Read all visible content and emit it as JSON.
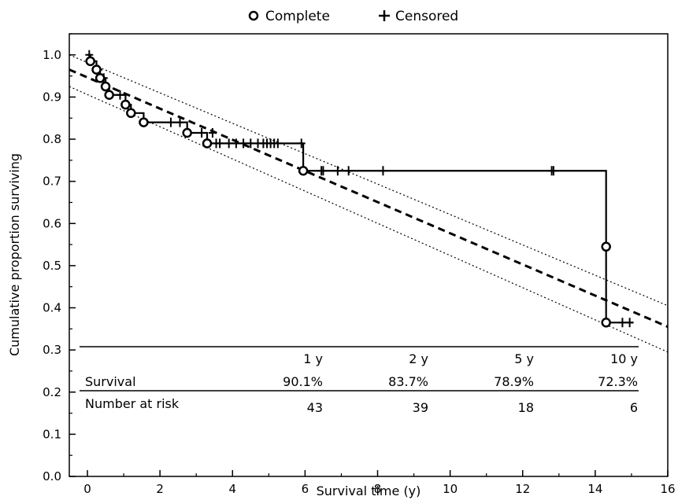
{
  "legend": {
    "complete_label": "Complete",
    "censored_label": "Censored",
    "placement": "top"
  },
  "chart_data": {
    "type": "line",
    "title": "",
    "xlabel": "Survival time (y)",
    "ylabel": "Cumulative proportion surviving",
    "xlim": [
      -0.5,
      16
    ],
    "ylim": [
      0,
      1.05
    ],
    "xticks": [
      0,
      2,
      4,
      6,
      8,
      10,
      12,
      14,
      16
    ],
    "yticks": [
      0.0,
      0.1,
      0.2,
      0.3,
      0.4,
      0.5,
      0.6,
      0.7,
      0.8,
      0.9,
      1.0
    ],
    "ytick_labels": [
      "0.0",
      "0.1",
      "0.2",
      "0.3",
      "0.4",
      "0.5",
      "0.6",
      "0.7",
      "0.8",
      "0.9",
      "1.0"
    ],
    "grid": false,
    "series": [
      {
        "name": "Complete",
        "kind": "step",
        "points": [
          [
            0.0,
            1.0
          ],
          [
            0.08,
            0.985
          ],
          [
            0.25,
            0.965
          ],
          [
            0.35,
            0.945
          ],
          [
            0.5,
            0.925
          ],
          [
            0.6,
            0.905
          ],
          [
            1.05,
            0.882
          ],
          [
            1.2,
            0.862
          ],
          [
            1.55,
            0.84
          ],
          [
            2.75,
            0.815
          ],
          [
            3.3,
            0.79
          ],
          [
            5.95,
            0.725
          ],
          [
            14.3,
            0.545
          ],
          [
            14.3,
            0.365
          ],
          [
            15.05,
            0.365
          ]
        ],
        "event_markers": [
          [
            0.08,
            0.985
          ],
          [
            0.25,
            0.965
          ],
          [
            0.35,
            0.945
          ],
          [
            0.5,
            0.925
          ],
          [
            0.6,
            0.905
          ],
          [
            1.05,
            0.882
          ],
          [
            1.2,
            0.862
          ],
          [
            1.55,
            0.84
          ],
          [
            2.75,
            0.815
          ],
          [
            3.3,
            0.79
          ],
          [
            5.95,
            0.725
          ],
          [
            14.3,
            0.545
          ],
          [
            14.3,
            0.365
          ]
        ]
      },
      {
        "name": "Censored",
        "kind": "markers",
        "points": [
          [
            0.05,
            1.0
          ],
          [
            0.3,
            0.965
          ],
          [
            0.45,
            0.945
          ],
          [
            0.9,
            0.905
          ],
          [
            1.1,
            0.882
          ],
          [
            2.3,
            0.84
          ],
          [
            2.55,
            0.84
          ],
          [
            3.15,
            0.815
          ],
          [
            3.45,
            0.815
          ],
          [
            3.55,
            0.79
          ],
          [
            3.65,
            0.79
          ],
          [
            3.9,
            0.79
          ],
          [
            4.1,
            0.79
          ],
          [
            4.3,
            0.79
          ],
          [
            4.5,
            0.79
          ],
          [
            4.7,
            0.79
          ],
          [
            4.85,
            0.79
          ],
          [
            4.95,
            0.79
          ],
          [
            5.05,
            0.79
          ],
          [
            5.15,
            0.79
          ],
          [
            5.25,
            0.79
          ],
          [
            5.9,
            0.79
          ],
          [
            6.45,
            0.725
          ],
          [
            6.5,
            0.725
          ],
          [
            6.9,
            0.725
          ],
          [
            7.2,
            0.725
          ],
          [
            8.15,
            0.725
          ],
          [
            12.8,
            0.725
          ],
          [
            12.85,
            0.725
          ],
          [
            14.75,
            0.365
          ],
          [
            14.95,
            0.365
          ]
        ]
      },
      {
        "kind": "regression",
        "style": "dashed",
        "points": [
          [
            -0.5,
            0.965
          ],
          [
            16,
            0.355
          ]
        ]
      },
      {
        "kind": "confidence-upper",
        "style": "dotted",
        "points": [
          [
            -0.5,
            1.0
          ],
          [
            16,
            0.405
          ]
        ]
      },
      {
        "kind": "confidence-lower",
        "style": "dotted",
        "points": [
          [
            -0.5,
            0.925
          ],
          [
            16,
            0.295
          ]
        ]
      }
    ],
    "inset_table": {
      "columns": [
        "1 y",
        "2 y",
        "5 y",
        "10 y"
      ],
      "rows": [
        {
          "label": "Survival",
          "values": [
            "90.1%",
            "83.7%",
            "78.9%",
            "72.3%"
          ]
        },
        {
          "label": "Number at risk",
          "values": [
            "43",
            "39",
            "18",
            "6"
          ]
        }
      ]
    }
  }
}
